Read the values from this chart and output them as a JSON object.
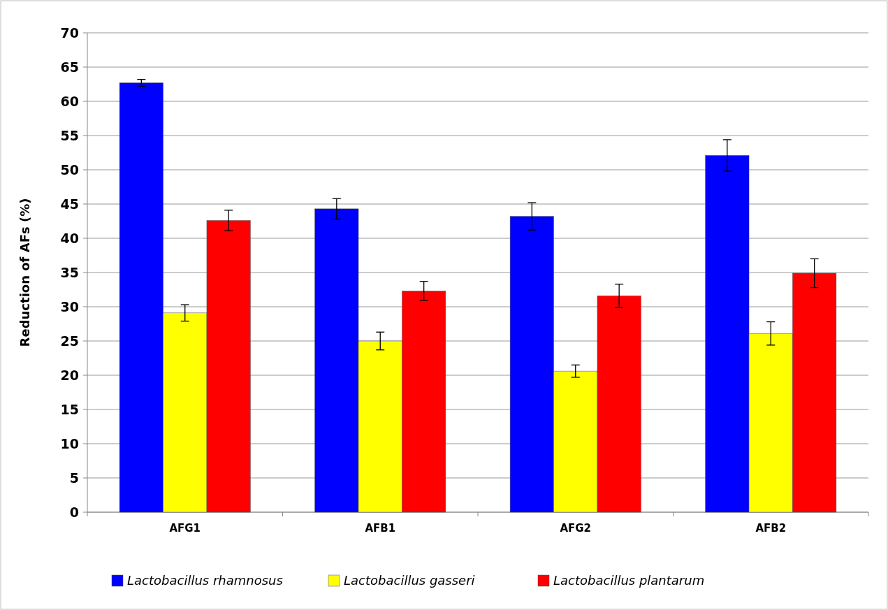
{
  "chart_data": {
    "type": "bar",
    "ylabel": "Reduction of AFs (%)",
    "categories": [
      "AFG1",
      "AFB1",
      "AFG2",
      "AFB2"
    ],
    "series": [
      {
        "name": "Lactobacillus rhamnosus",
        "color": "#0000ff",
        "values": [
          62.7,
          44.3,
          43.2,
          52.1
        ],
        "errors": [
          0.5,
          1.5,
          2.0,
          2.3
        ]
      },
      {
        "name": "Lactobacillus gasseri",
        "color": "#ffff00",
        "values": [
          29.1,
          25.0,
          20.6,
          26.1
        ],
        "errors": [
          1.2,
          1.3,
          0.9,
          1.7
        ]
      },
      {
        "name": "Lactobacillus plantarum",
        "color": "#ff0000",
        "values": [
          42.6,
          32.3,
          31.6,
          34.9
        ],
        "errors": [
          1.5,
          1.4,
          1.7,
          2.1
        ]
      }
    ],
    "ylim": [
      0,
      70
    ],
    "yticks": [
      0,
      5,
      10,
      15,
      20,
      25,
      30,
      35,
      40,
      45,
      50,
      55,
      60,
      65,
      70
    ],
    "grid": "y",
    "legend": "bottom"
  }
}
